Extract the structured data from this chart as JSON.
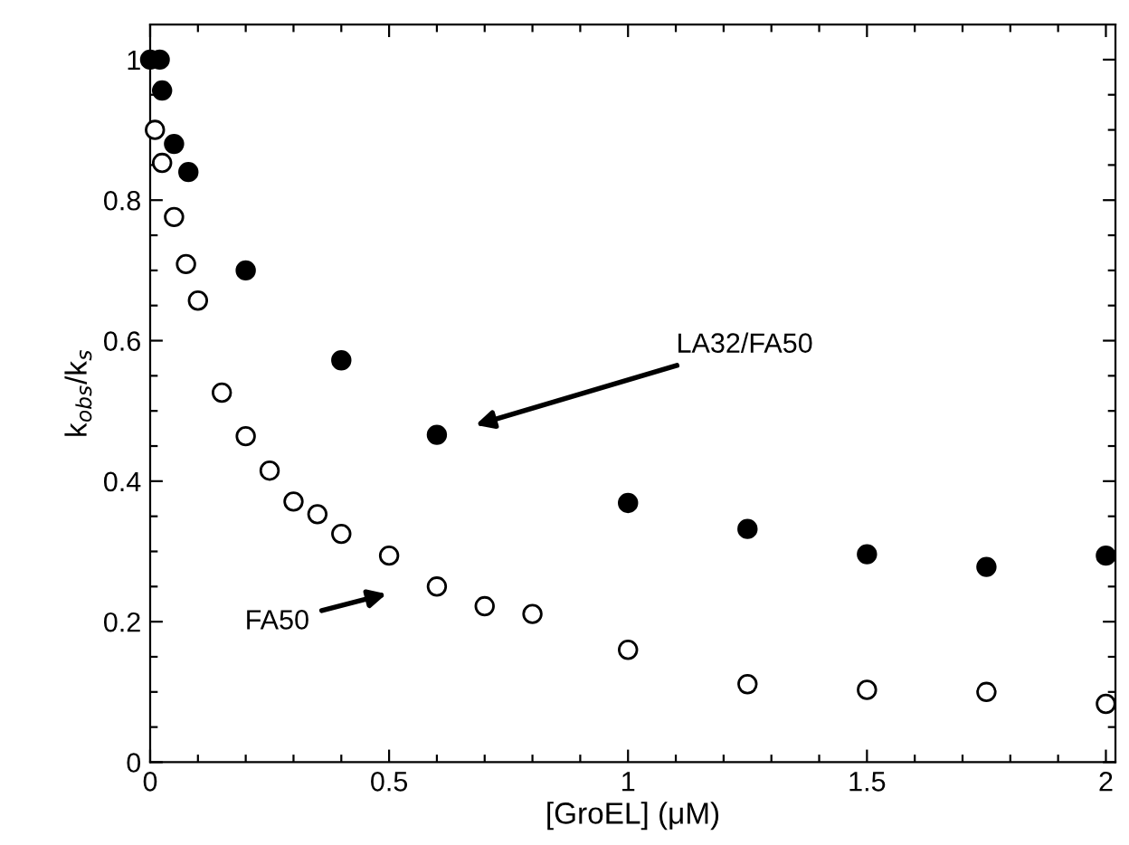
{
  "chart_data": {
    "type": "scatter",
    "xlabel": "[GroEL] (μM)",
    "ylabel": "k$_{obs}$/k$_{s}$",
    "series": [
      {
        "color": "#000000",
        "x": [
          0,
          0.02,
          0.025,
          0.05,
          0.08,
          0.2,
          0.4,
          0.6,
          1.0,
          1.25,
          1.5,
          1.75,
          2.0
        ],
        "values": [
          1.0,
          1.0,
          0.956,
          0.88,
          0.84,
          0.7,
          0.572,
          0.466,
          0.369,
          0.332,
          0.296,
          0.278,
          0.294
        ]
      },
      {
        "color": "#ffffff",
        "x": [
          0.01,
          0.025,
          0.05,
          0.075,
          0.1,
          0.15,
          0.2,
          0.25,
          0.3,
          0.35,
          0.4,
          0.5,
          0.6,
          0.7,
          0.8,
          1.0,
          1.25,
          1.5,
          1.75,
          2.0
        ],
        "values": [
          0.9,
          0.853,
          0.776,
          0.709,
          0.657,
          0.526,
          0.464,
          0.415,
          0.371,
          0.353,
          0.325,
          0.294,
          0.25,
          0.222,
          0.211,
          0.16,
          0.111,
          0.103,
          0.1,
          0.083
        ]
      }
    ],
    "annotations": [
      "LA32/FA50",
      "FA50"
    ],
    "xlim": [
      0,
      2.02
    ],
    "ylim": [
      0,
      1.05
    ],
    "xticks": [
      0,
      {
        "value": 0.1,
        "label": null
      },
      {
        "value": 0.2,
        "label": null
      },
      {
        "value": 0.3,
        "label": null
      },
      {
        "value": 0.4,
        "label": null
      },
      0.5,
      {
        "value": 0.6,
        "label": null
      },
      {
        "value": 0.7,
        "label": null
      },
      {
        "value": 0.8,
        "label": null
      },
      {
        "value": 0.9,
        "label": null
      },
      1,
      {
        "value": 1.1,
        "label": null
      },
      {
        "value": 1.2,
        "label": null
      },
      {
        "value": 1.3,
        "label": null
      },
      {
        "value": 1.4,
        "label": null
      },
      1.5,
      {
        "value": 1.6,
        "label": null
      },
      {
        "value": 1.7,
        "label": null
      },
      {
        "value": 1.8,
        "label": null
      },
      {
        "value": 1.9,
        "label": null
      },
      2
    ],
    "yticks": [
      0,
      {
        "value": 0.05,
        "label": null
      },
      {
        "value": 0.1,
        "label": null
      },
      {
        "value": 0.15,
        "label": null
      },
      0.2,
      {
        "value": 0.25,
        "label": null
      },
      {
        "value": 0.3,
        "label": null
      },
      {
        "value": 0.35,
        "label": null
      },
      0.4,
      {
        "value": 0.45,
        "label": null
      },
      {
        "value": 0.5,
        "label": null
      },
      {
        "value": 0.55,
        "label": null
      },
      0.6,
      {
        "value": 0.65,
        "label": null
      },
      {
        "value": 0.7,
        "label": null
      },
      {
        "value": 0.75,
        "label": null
      },
      0.8,
      {
        "value": 0.85,
        "label": null
      },
      {
        "value": 0.9,
        "label": null
      },
      {
        "value": 0.95,
        "label": null
      },
      1
    ],
    "grid": false,
    "legend": false,
    "marker": "circle"
  }
}
